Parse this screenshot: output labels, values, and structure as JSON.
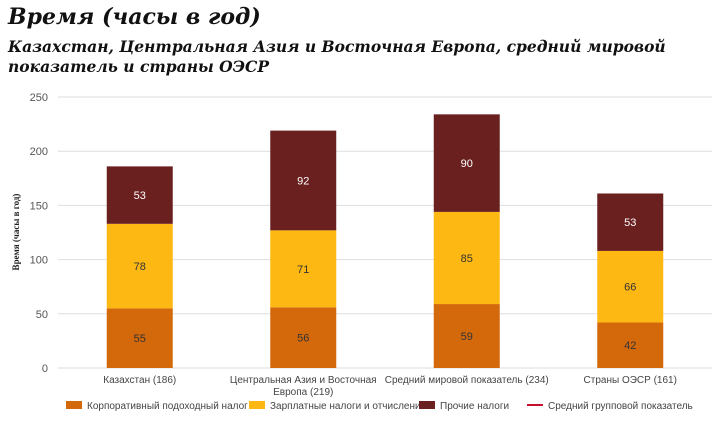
{
  "chart_data": {
    "type": "bar",
    "stacked": true,
    "title": "Время (часы в год)",
    "subtitle": "Казахстан, Центральная Азия и Восточная Европа, средний мировой показатель и страны ОЭСР",
    "ylabel": "Время (часы в год)",
    "xlabel": "",
    "ylim": [
      0,
      250
    ],
    "yticks": [
      0,
      50,
      100,
      150,
      200,
      250
    ],
    "grid": true,
    "legend_position": "bottom",
    "categories": [
      [
        "Казахстан (186)"
      ],
      [
        "Центральная Азия и Восточная",
        "Европа (219)"
      ],
      [
        "Средний мировой показатель (234)"
      ],
      [
        "Страны ОЭСР (161)"
      ]
    ],
    "series": [
      {
        "name": "Корпоративный подоходный налог",
        "color": "#d4690c",
        "values": [
          55,
          56,
          59,
          42
        ]
      },
      {
        "name": "Зарплатные налоги и отчисления",
        "color": "#fdb813",
        "values": [
          78,
          71,
          85,
          66
        ]
      },
      {
        "name": "Прочие налоги",
        "color": "#6b2020",
        "values": [
          53,
          92,
          90,
          53
        ]
      }
    ],
    "line_series": {
      "name": "Средний групповой показатель",
      "color": "#c8102e"
    }
  }
}
